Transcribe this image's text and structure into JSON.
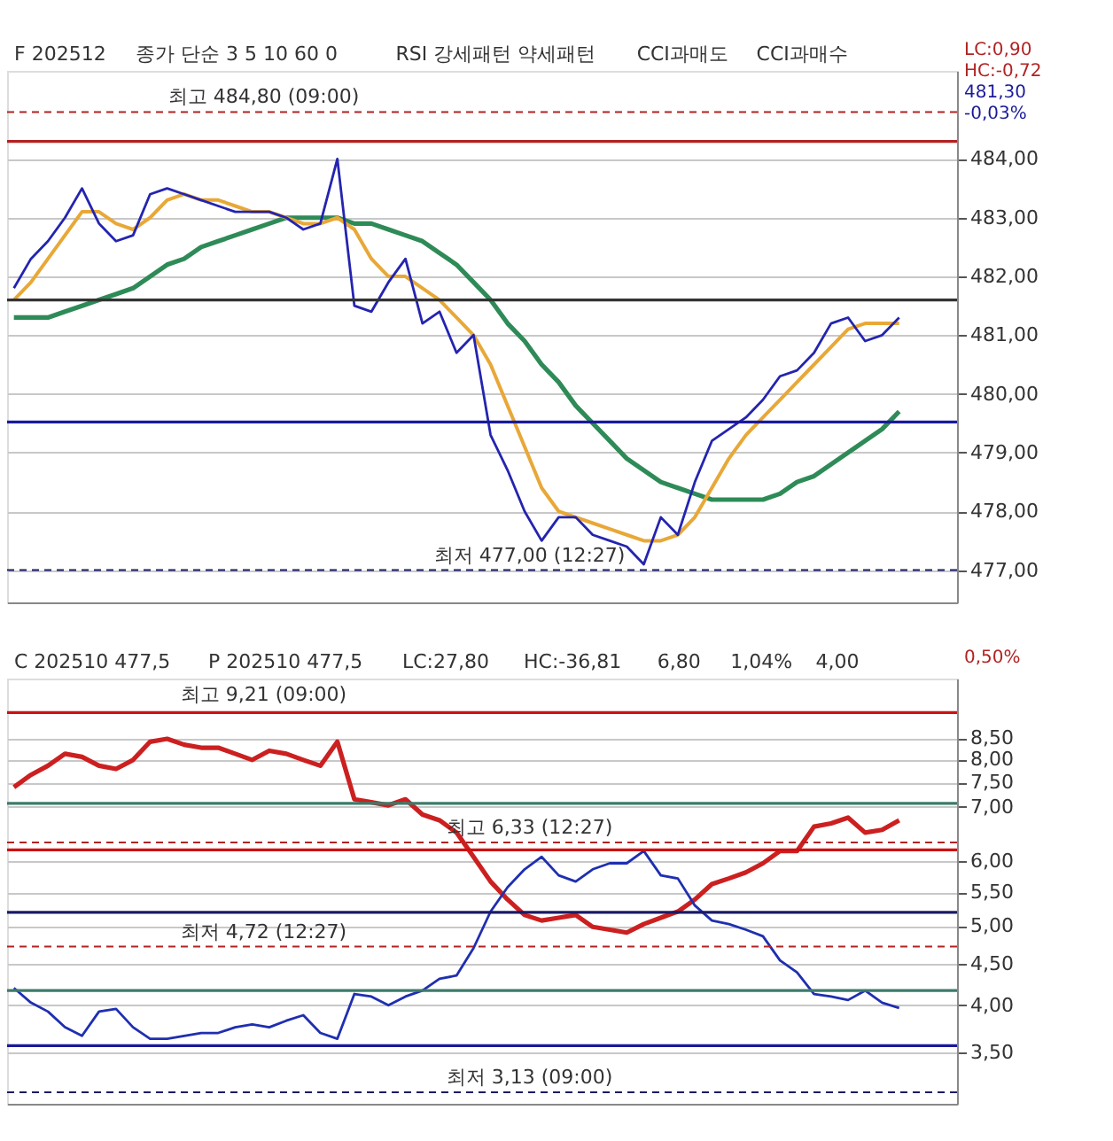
{
  "chart_data": [
    {
      "type": "line",
      "annotations": [
        "F 202512",
        "종가 단순 3 5 10 60 0",
        "RSI 강세패턴 약세패턴",
        "CCI과매도",
        "CCI과매수",
        "LC:0,90",
        "HC:-0,72",
        {
          "text": "최고 484,80 (09:00)",
          "y": 484.8
        },
        {
          "text": "최저 477,00 (12:27)",
          "y": 477.0
        },
        "481,30",
        "-0,03%"
      ],
      "categories": [
        null,
        null,
        null,
        null,
        null,
        null,
        null,
        null,
        null,
        null,
        null,
        null,
        null,
        null,
        null,
        null,
        null,
        null,
        null,
        null,
        null,
        null,
        null,
        null,
        null,
        null,
        null,
        null,
        null,
        null,
        null,
        null,
        null,
        null,
        null,
        null,
        null,
        null,
        null,
        null,
        null,
        null,
        null,
        null,
        null,
        null,
        null,
        null,
        null,
        null,
        null,
        null,
        null
      ],
      "series": [
        {
          "color": "#2e8b57",
          "values": [
            481.3,
            481.3,
            481.3,
            481.4,
            481.5,
            481.6,
            481.7,
            481.8,
            482.0,
            482.2,
            482.3,
            482.5,
            482.6,
            482.7,
            482.8,
            482.9,
            483.0,
            483.0,
            483.0,
            483.0,
            482.9,
            482.9,
            482.8,
            482.7,
            482.6,
            482.4,
            482.2,
            481.9,
            481.6,
            481.2,
            480.9,
            480.5,
            480.2,
            479.8,
            479.5,
            479.2,
            478.9,
            478.7,
            478.5,
            478.4,
            478.3,
            478.2,
            478.2,
            478.2,
            478.2,
            478.3,
            478.5,
            478.6,
            478.8,
            479.0,
            479.2,
            479.4,
            479.7
          ]
        },
        {
          "color": "#e8a838",
          "values": [
            481.6,
            481.9,
            482.3,
            482.7,
            483.1,
            483.1,
            482.9,
            482.8,
            483.0,
            483.3,
            483.4,
            483.3,
            483.3,
            483.2,
            483.1,
            483.1,
            483.0,
            482.9,
            482.9,
            483.0,
            482.8,
            482.3,
            482.0,
            482.0,
            481.8,
            481.6,
            481.3,
            481.0,
            480.5,
            479.8,
            479.1,
            478.4,
            478.0,
            477.9,
            477.8,
            477.7,
            477.6,
            477.5,
            477.5,
            477.6,
            477.9,
            478.4,
            478.9,
            479.3,
            479.6,
            479.9,
            480.2,
            480.5,
            480.8,
            481.1,
            481.2,
            481.2,
            481.2
          ]
        },
        {
          "color": "#2424b0",
          "values": [
            481.8,
            482.3,
            482.6,
            483.0,
            483.5,
            482.9,
            482.6,
            482.7,
            483.4,
            483.5,
            483.4,
            483.3,
            483.2,
            483.1,
            483.1,
            483.1,
            483.0,
            482.8,
            482.9,
            484.0,
            481.5,
            481.4,
            481.9,
            482.3,
            481.2,
            481.4,
            480.7,
            481.0,
            479.3,
            478.7,
            478.0,
            477.5,
            477.9,
            477.9,
            477.6,
            477.5,
            477.4,
            477.1,
            477.9,
            477.6,
            478.5,
            479.2,
            479.4,
            479.6,
            479.9,
            480.3,
            480.4,
            480.7,
            481.2,
            481.3,
            480.9,
            481.0,
            481.3
          ]
        }
      ],
      "ylim": [
        476.45,
        485.5
      ],
      "yticks": [
        {
          "value": 477,
          "label": "477,00"
        },
        {
          "value": 478,
          "label": "478,00"
        },
        {
          "value": 479,
          "label": "479,00"
        },
        {
          "value": 480,
          "label": "480,00"
        },
        {
          "value": 481,
          "label": "481,00"
        },
        {
          "value": 482,
          "label": "482,00"
        },
        {
          "value": 483,
          "label": "483,00"
        },
        {
          "value": 484,
          "label": "484,00"
        }
      ],
      "tick_labels": "y",
      "grid": true,
      "ref_lines": [
        {
          "axis": "y",
          "value": 484.8,
          "color": "#b22222",
          "line_style": "dashed"
        },
        {
          "axis": "y",
          "value": 484.3,
          "color": "#b22222"
        },
        {
          "axis": "y",
          "value": 481.6,
          "color": "#333333"
        },
        {
          "axis": "y",
          "value": 479.52,
          "color": "#1a1a99"
        },
        {
          "axis": "y",
          "value": 477.0,
          "color": "#1a1a66",
          "line_style": "dashed"
        }
      ]
    },
    {
      "type": "line",
      "annotations": [
        "C 202510 477,5",
        "P 202510 477,5",
        "LC:27,80",
        "HC:-36,81",
        {
          "text": "최고 9,21 (09:00)",
          "y": 9.21
        },
        {
          "text": "최고 6,33 (12:27)",
          "y": 6.33
        },
        {
          "text": "최저 4,72 (12:27)",
          "y": 4.72
        },
        {
          "text": "최저 3,13 (09:00)",
          "y": 3.13
        },
        "6,80",
        "1,04%",
        "4,00",
        "0,50%"
      ],
      "categories": [
        null,
        null,
        null,
        null,
        null,
        null,
        null,
        null,
        null,
        null,
        null,
        null,
        null,
        null,
        null,
        null,
        null,
        null,
        null,
        null,
        null,
        null,
        null,
        null,
        null,
        null,
        null,
        null,
        null,
        null,
        null,
        null,
        null,
        null,
        null,
        null,
        null,
        null,
        null,
        null,
        null,
        null,
        null,
        null,
        null,
        null,
        null,
        null,
        null,
        null,
        null,
        null,
        null
      ],
      "series": [
        {
          "color": "#cc2020",
          "values": [
            7.4,
            7.66,
            7.86,
            8.13,
            8.06,
            7.86,
            7.79,
            7.99,
            8.41,
            8.48,
            8.34,
            8.27,
            8.27,
            8.13,
            7.99,
            8.2,
            8.13,
            7.99,
            7.86,
            8.41,
            7.15,
            7.09,
            7.03,
            7.15,
            6.85,
            6.74,
            6.51,
            6.08,
            5.67,
            5.39,
            5.16,
            5.08,
            5.12,
            5.16,
            4.99,
            4.95,
            4.91,
            5.03,
            5.12,
            5.21,
            5.39,
            5.63,
            5.72,
            5.82,
            5.97,
            6.18,
            6.18,
            6.62,
            6.68,
            6.79,
            6.51,
            6.56,
            6.74
          ]
        },
        {
          "color": "#1f2fb0",
          "values": [
            4.2,
            4.03,
            3.93,
            3.76,
            3.67,
            3.93,
            3.96,
            3.76,
            3.64,
            3.64,
            3.67,
            3.7,
            3.7,
            3.76,
            3.79,
            3.76,
            3.83,
            3.89,
            3.7,
            3.64,
            4.13,
            4.1,
            4.0,
            4.1,
            4.17,
            4.31,
            4.35,
            4.7,
            5.21,
            5.58,
            5.87,
            6.08,
            5.77,
            5.67,
            5.87,
            5.97,
            5.97,
            6.18,
            5.77,
            5.72,
            5.3,
            5.08,
            5.03,
            4.95,
            4.86,
            4.54,
            4.39,
            4.13,
            4.1,
            4.06,
            4.17,
            4.03,
            3.97
          ]
        }
      ],
      "log": "y",
      "ylim": [
        3.03,
        10.05
      ],
      "yticks": [
        {
          "value": 3.5,
          "label": "3,50"
        },
        {
          "value": 4.0,
          "label": "4,00"
        },
        {
          "value": 4.5,
          "label": "4,50"
        },
        {
          "value": 5.0,
          "label": "5,00"
        },
        {
          "value": 5.5,
          "label": "5,50"
        },
        {
          "value": 6.0,
          "label": "6,00"
        },
        {
          "value": 7.0,
          "label": "7,00"
        },
        {
          "value": 7.5,
          "label": "7,50"
        },
        {
          "value": 8.0,
          "label": "8,00"
        },
        {
          "value": 8.5,
          "label": "8,50"
        }
      ],
      "tick_labels": "y",
      "grid": true,
      "ref_lines": [
        {
          "axis": "y",
          "value": 9.13,
          "color": "#cc1111"
        },
        {
          "axis": "y",
          "value": 7.07,
          "color": "#3d7a6a"
        },
        {
          "axis": "y",
          "value": 6.33,
          "color": "#b22222",
          "line_style": "dashed"
        },
        {
          "axis": "y",
          "value": 6.2,
          "color": "#cc1111"
        },
        {
          "axis": "y",
          "value": 5.2,
          "color": "#1a1a66"
        },
        {
          "axis": "y",
          "value": 4.72,
          "color": "#b22222",
          "line_style": "dashed"
        },
        {
          "axis": "y",
          "value": 4.17,
          "color": "#3d7a6a"
        },
        {
          "axis": "y",
          "value": 3.57,
          "color": "#1a1a99"
        },
        {
          "axis": "y",
          "value": 3.13,
          "color": "#1a1a66",
          "line_style": "dashed"
        }
      ]
    }
  ]
}
